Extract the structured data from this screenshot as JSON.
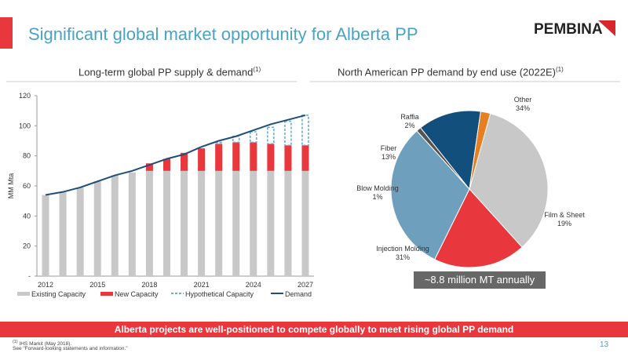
{
  "slide": {
    "title": "Significant global market opportunity for Alberta PP",
    "logo_text": "PEMBINA",
    "banner": "Alberta projects are well-positioned to compete globally to meet rising global PP demand",
    "footnote_1": "IHS Markit (May 2018).",
    "footnote_marker": "(1)",
    "footnote_2": "See \"Forward-looking statements and information.\"",
    "page_number": "13",
    "callout": "~8.8 million MT annually",
    "colors": {
      "accent": "#e8373d",
      "title": "#4aa3c2",
      "logo_red": "#d9262c"
    }
  },
  "chart_data": [
    {
      "type": "bar",
      "title": "Long-term global PP supply & demand",
      "title_sup": "(1)",
      "ylabel": "MM Mta",
      "ylim": [
        0,
        120
      ],
      "yticks": [
        0,
        20,
        40,
        60,
        80,
        100,
        120
      ],
      "ytick_labels": [
        "-",
        "20",
        "40",
        "60",
        "80",
        "100",
        "120"
      ],
      "categories": [
        "2012",
        "2013",
        "2014",
        "2015",
        "2016",
        "2017",
        "2018",
        "2019",
        "2020",
        "2021",
        "2022",
        "2023",
        "2024",
        "2025",
        "2026",
        "2027"
      ],
      "xtick_labels": [
        "2012",
        "2015",
        "2018",
        "2021",
        "2024",
        "2027"
      ],
      "xtick_indices": [
        0,
        3,
        6,
        9,
        12,
        15
      ],
      "legend_position": "bottom",
      "series": [
        {
          "name": "Existing Capacity",
          "kind": "stacked-bar",
          "color": "#c8c8c8",
          "values": [
            54,
            56,
            59,
            63,
            67,
            69,
            70,
            70,
            70,
            70,
            70,
            70,
            70,
            70,
            70,
            70
          ]
        },
        {
          "name": "New Capacity",
          "kind": "stacked-bar",
          "color": "#e8373d",
          "values": [
            0,
            0,
            0,
            0,
            0,
            0,
            5,
            8,
            12,
            15,
            18,
            19,
            19,
            18,
            17,
            17
          ]
        },
        {
          "name": "Hypothetical Capacity",
          "kind": "stacked-bar-dashed",
          "color": "#6fa8c8",
          "values": [
            0,
            0,
            0,
            0,
            0,
            0,
            0,
            0,
            0,
            0,
            1,
            4,
            7,
            11,
            16,
            20
          ]
        },
        {
          "name": "Demand",
          "kind": "line",
          "color": "#1f4e79",
          "values": [
            54,
            56,
            59,
            63,
            67,
            70,
            74,
            78,
            81,
            86,
            90,
            93,
            97,
            101,
            104,
            107
          ]
        }
      ]
    },
    {
      "type": "pie",
      "title": "North American PP demand by end use (2022E)",
      "title_sup": "(1)",
      "slices": [
        {
          "label": "Other",
          "value": 34,
          "value_label": "34%",
          "color": "#c8c8c8"
        },
        {
          "label": "Film & Sheet",
          "value": 19,
          "value_label": "19%",
          "color": "#e8373d"
        },
        {
          "label": "Injection Molding",
          "value": 31,
          "value_label": "31%",
          "color": "#6e9fbd"
        },
        {
          "label": "Blow Molding",
          "value": 1,
          "value_label": "1%",
          "color": "#555555"
        },
        {
          "label": "Fiber",
          "value": 13,
          "value_label": "13%",
          "color": "#134f7c"
        },
        {
          "label": "Raffia",
          "value": 2,
          "value_label": "2%",
          "color": "#e67e22"
        }
      ]
    }
  ]
}
